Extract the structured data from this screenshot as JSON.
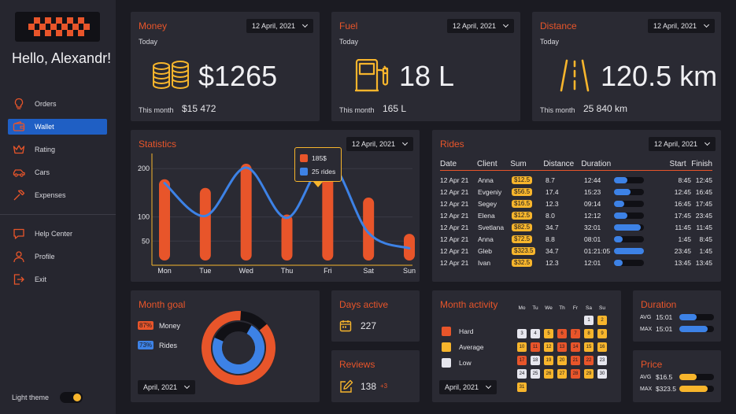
{
  "sidebar": {
    "greeting": "Hello, Alexandr!",
    "nav": [
      {
        "label": "Orders",
        "icon": "lightbulb-icon"
      },
      {
        "label": "Wallet",
        "icon": "wallet-icon",
        "active": true
      },
      {
        "label": "Rating",
        "icon": "crown-icon"
      },
      {
        "label": "Cars",
        "icon": "car-icon"
      },
      {
        "label": "Expenses",
        "icon": "hammer-icon"
      }
    ],
    "nav2": [
      {
        "label": "Help Center",
        "icon": "chat-icon"
      },
      {
        "label": "Profile",
        "icon": "user-icon"
      },
      {
        "label": "Exit",
        "icon": "exit-icon"
      }
    ],
    "theme_label": "Light theme",
    "theme_toggle_on": true
  },
  "money": {
    "title": "Money",
    "date": "12 April, 2021",
    "today": "Today",
    "value": "$1265",
    "month_label": "This month",
    "month_value": "$15 472",
    "icon": "coins-icon"
  },
  "fuel": {
    "title": "Fuel",
    "date": "12 April, 2021",
    "today": "Today",
    "value": "18 L",
    "month_label": "This month",
    "month_value": "165 L",
    "icon": "fuel-pump-icon"
  },
  "distance": {
    "title": "Distance",
    "date": "12 April, 2021",
    "today": "Today",
    "value": "120.5 km",
    "month_label": "This month",
    "month_value": "25 840 km",
    "icon": "road-icon"
  },
  "statistics": {
    "title": "Statistics",
    "date": "12 April, 2021",
    "tooltip": {
      "money": "185$",
      "rides": "25 rides"
    },
    "colors": {
      "bar": "#e8552a",
      "line": "#3d82e6"
    }
  },
  "chart_data": {
    "type": "bar",
    "title": "Statistics",
    "categories": [
      "Mon",
      "Tue",
      "Wed",
      "Thu",
      "Fri",
      "Sat",
      "Sun"
    ],
    "series": [
      {
        "values": [
          178,
          160,
          210,
          105,
          185,
          140,
          65
        ]
      },
      {
        "values": [
          170,
          102,
          202,
          98,
          217,
          67,
          35
        ]
      }
    ],
    "yticks": [
      50,
      100,
      200
    ],
    "ylim": [
      0,
      228
    ],
    "grid": true
  },
  "rides": {
    "title": "Rides",
    "date": "12 April, 2021",
    "headers": [
      "Date",
      "Client",
      "Sum",
      "Distance",
      "Duration",
      "Start",
      "Finish"
    ],
    "rows": [
      {
        "date": "12 Apr 21",
        "client": "Anna",
        "sum": "$12.5",
        "distance": "8.7",
        "duration": "12:44",
        "fill": 0.45,
        "start": "8:45",
        "finish": "12:45"
      },
      {
        "date": "12 Apr 21",
        "client": "Evgeniy",
        "sum": "$56.5",
        "distance": "17.4",
        "duration": "15:23",
        "fill": 0.55,
        "start": "12:45",
        "finish": "16:45"
      },
      {
        "date": "12 Apr 21",
        "client": "Segey",
        "sum": "$16.5",
        "distance": "12.3",
        "duration": "09:14",
        "fill": 0.35,
        "start": "16:45",
        "finish": "17:45"
      },
      {
        "date": "12 Apr 21",
        "client": "Elena",
        "sum": "$12.5",
        "distance": "8.0",
        "duration": "12:12",
        "fill": 0.45,
        "start": "17:45",
        "finish": "23:45"
      },
      {
        "date": "12 Apr 21",
        "client": "Svetlana",
        "sum": "$82.5",
        "distance": "34.7",
        "duration": "32:01",
        "fill": 0.9,
        "start": "11:45",
        "finish": "11:45"
      },
      {
        "date": "12 Apr 21",
        "client": "Anna",
        "sum": "$72.5",
        "distance": "8.8",
        "duration": "08:01",
        "fill": 0.3,
        "start": "1:45",
        "finish": "8:45"
      },
      {
        "date": "12 Apr 21",
        "client": "Gleb",
        "sum": "$323.5",
        "distance": "34.7",
        "duration": "01:21:05",
        "fill": 1.0,
        "start": "23:45",
        "finish": "1:45"
      },
      {
        "date": "12 Apr 21",
        "client": "Ivan",
        "sum": "$32.5",
        "distance": "12.3",
        "duration": "12:01",
        "fill": 0.3,
        "start": "13:45",
        "finish": "13:45"
      }
    ]
  },
  "month_goal": {
    "title": "Month goal",
    "items": [
      {
        "pct": "87%",
        "label": "Money",
        "color": "#e8552a",
        "value": 0.87
      },
      {
        "pct": "73%",
        "label": "Rides",
        "color": "#3d82e6",
        "value": 0.73
      }
    ],
    "date": "April, 2021"
  },
  "days_active": {
    "title": "Days active",
    "value": "227",
    "icon": "calendar-icon"
  },
  "reviews": {
    "title": "Reviews",
    "value": "138",
    "delta": "+3",
    "icon": "edit-icon"
  },
  "month_activity": {
    "title": "Month activity",
    "legend": [
      {
        "label": "Hard",
        "color": "#e8552a"
      },
      {
        "label": "Average",
        "color": "#f7b52c"
      },
      {
        "label": "Low",
        "color": "#e6e6ee"
      }
    ],
    "date": "April, 2021",
    "weekdays": [
      "Mo",
      "Tu",
      "We",
      "Th",
      "Fr",
      "Sa",
      "Su"
    ],
    "days": [
      {
        "d": "1",
        "col": 5,
        "row": 0,
        "lvl": "low"
      },
      {
        "d": "2",
        "col": 6,
        "row": 0,
        "lvl": "avg"
      },
      {
        "d": "3",
        "col": 0,
        "row": 1,
        "lvl": "low"
      },
      {
        "d": "4",
        "col": 1,
        "row": 1,
        "lvl": "low"
      },
      {
        "d": "5",
        "col": 2,
        "row": 1,
        "lvl": "avg"
      },
      {
        "d": "6",
        "col": 3,
        "row": 1,
        "lvl": "hard"
      },
      {
        "d": "7",
        "col": 4,
        "row": 1,
        "lvl": "hard"
      },
      {
        "d": "8",
        "col": 5,
        "row": 1,
        "lvl": "avg"
      },
      {
        "d": "9",
        "col": 6,
        "row": 1,
        "lvl": "avg"
      },
      {
        "d": "10",
        "col": 0,
        "row": 2,
        "lvl": "avg"
      },
      {
        "d": "11",
        "col": 1,
        "row": 2,
        "lvl": "hard"
      },
      {
        "d": "12",
        "col": 2,
        "row": 2,
        "lvl": "avg"
      },
      {
        "d": "13",
        "col": 3,
        "row": 2,
        "lvl": "hard"
      },
      {
        "d": "14",
        "col": 4,
        "row": 2,
        "lvl": "hard"
      },
      {
        "d": "15",
        "col": 5,
        "row": 2,
        "lvl": "avg"
      },
      {
        "d": "16",
        "col": 6,
        "row": 2,
        "lvl": "avg"
      },
      {
        "d": "17",
        "col": 0,
        "row": 3,
        "lvl": "hard"
      },
      {
        "d": "18",
        "col": 1,
        "row": 3,
        "lvl": "low"
      },
      {
        "d": "19",
        "col": 2,
        "row": 3,
        "lvl": "avg"
      },
      {
        "d": "20",
        "col": 3,
        "row": 3,
        "lvl": "avg"
      },
      {
        "d": "21",
        "col": 4,
        "row": 3,
        "lvl": "hard"
      },
      {
        "d": "22",
        "col": 5,
        "row": 3,
        "lvl": "hard"
      },
      {
        "d": "23",
        "col": 6,
        "row": 3,
        "lvl": "low"
      },
      {
        "d": "24",
        "col": 0,
        "row": 4,
        "lvl": "low"
      },
      {
        "d": "25",
        "col": 1,
        "row": 4,
        "lvl": "low"
      },
      {
        "d": "26",
        "col": 2,
        "row": 4,
        "lvl": "avg"
      },
      {
        "d": "27",
        "col": 3,
        "row": 4,
        "lvl": "avg"
      },
      {
        "d": "28",
        "col": 4,
        "row": 4,
        "lvl": "hard"
      },
      {
        "d": "29",
        "col": 5,
        "row": 4,
        "lvl": "avg"
      },
      {
        "d": "30",
        "col": 6,
        "row": 4,
        "lvl": "low"
      },
      {
        "d": "31",
        "col": 0,
        "row": 5,
        "lvl": "avg"
      }
    ]
  },
  "duration": {
    "title": "Duration",
    "rows": [
      {
        "label": "AVG",
        "value": "15:01",
        "fill": 0.5
      },
      {
        "label": "MAX",
        "value": "15:01",
        "fill": 0.82
      }
    ],
    "color": "#3d82e6"
  },
  "price": {
    "title": "Price",
    "rows": [
      {
        "label": "AVG",
        "value": "$16.5",
        "fill": 0.5
      },
      {
        "label": "MAX",
        "value": "$323.5",
        "fill": 0.82
      }
    ],
    "color": "#f7b52c"
  }
}
